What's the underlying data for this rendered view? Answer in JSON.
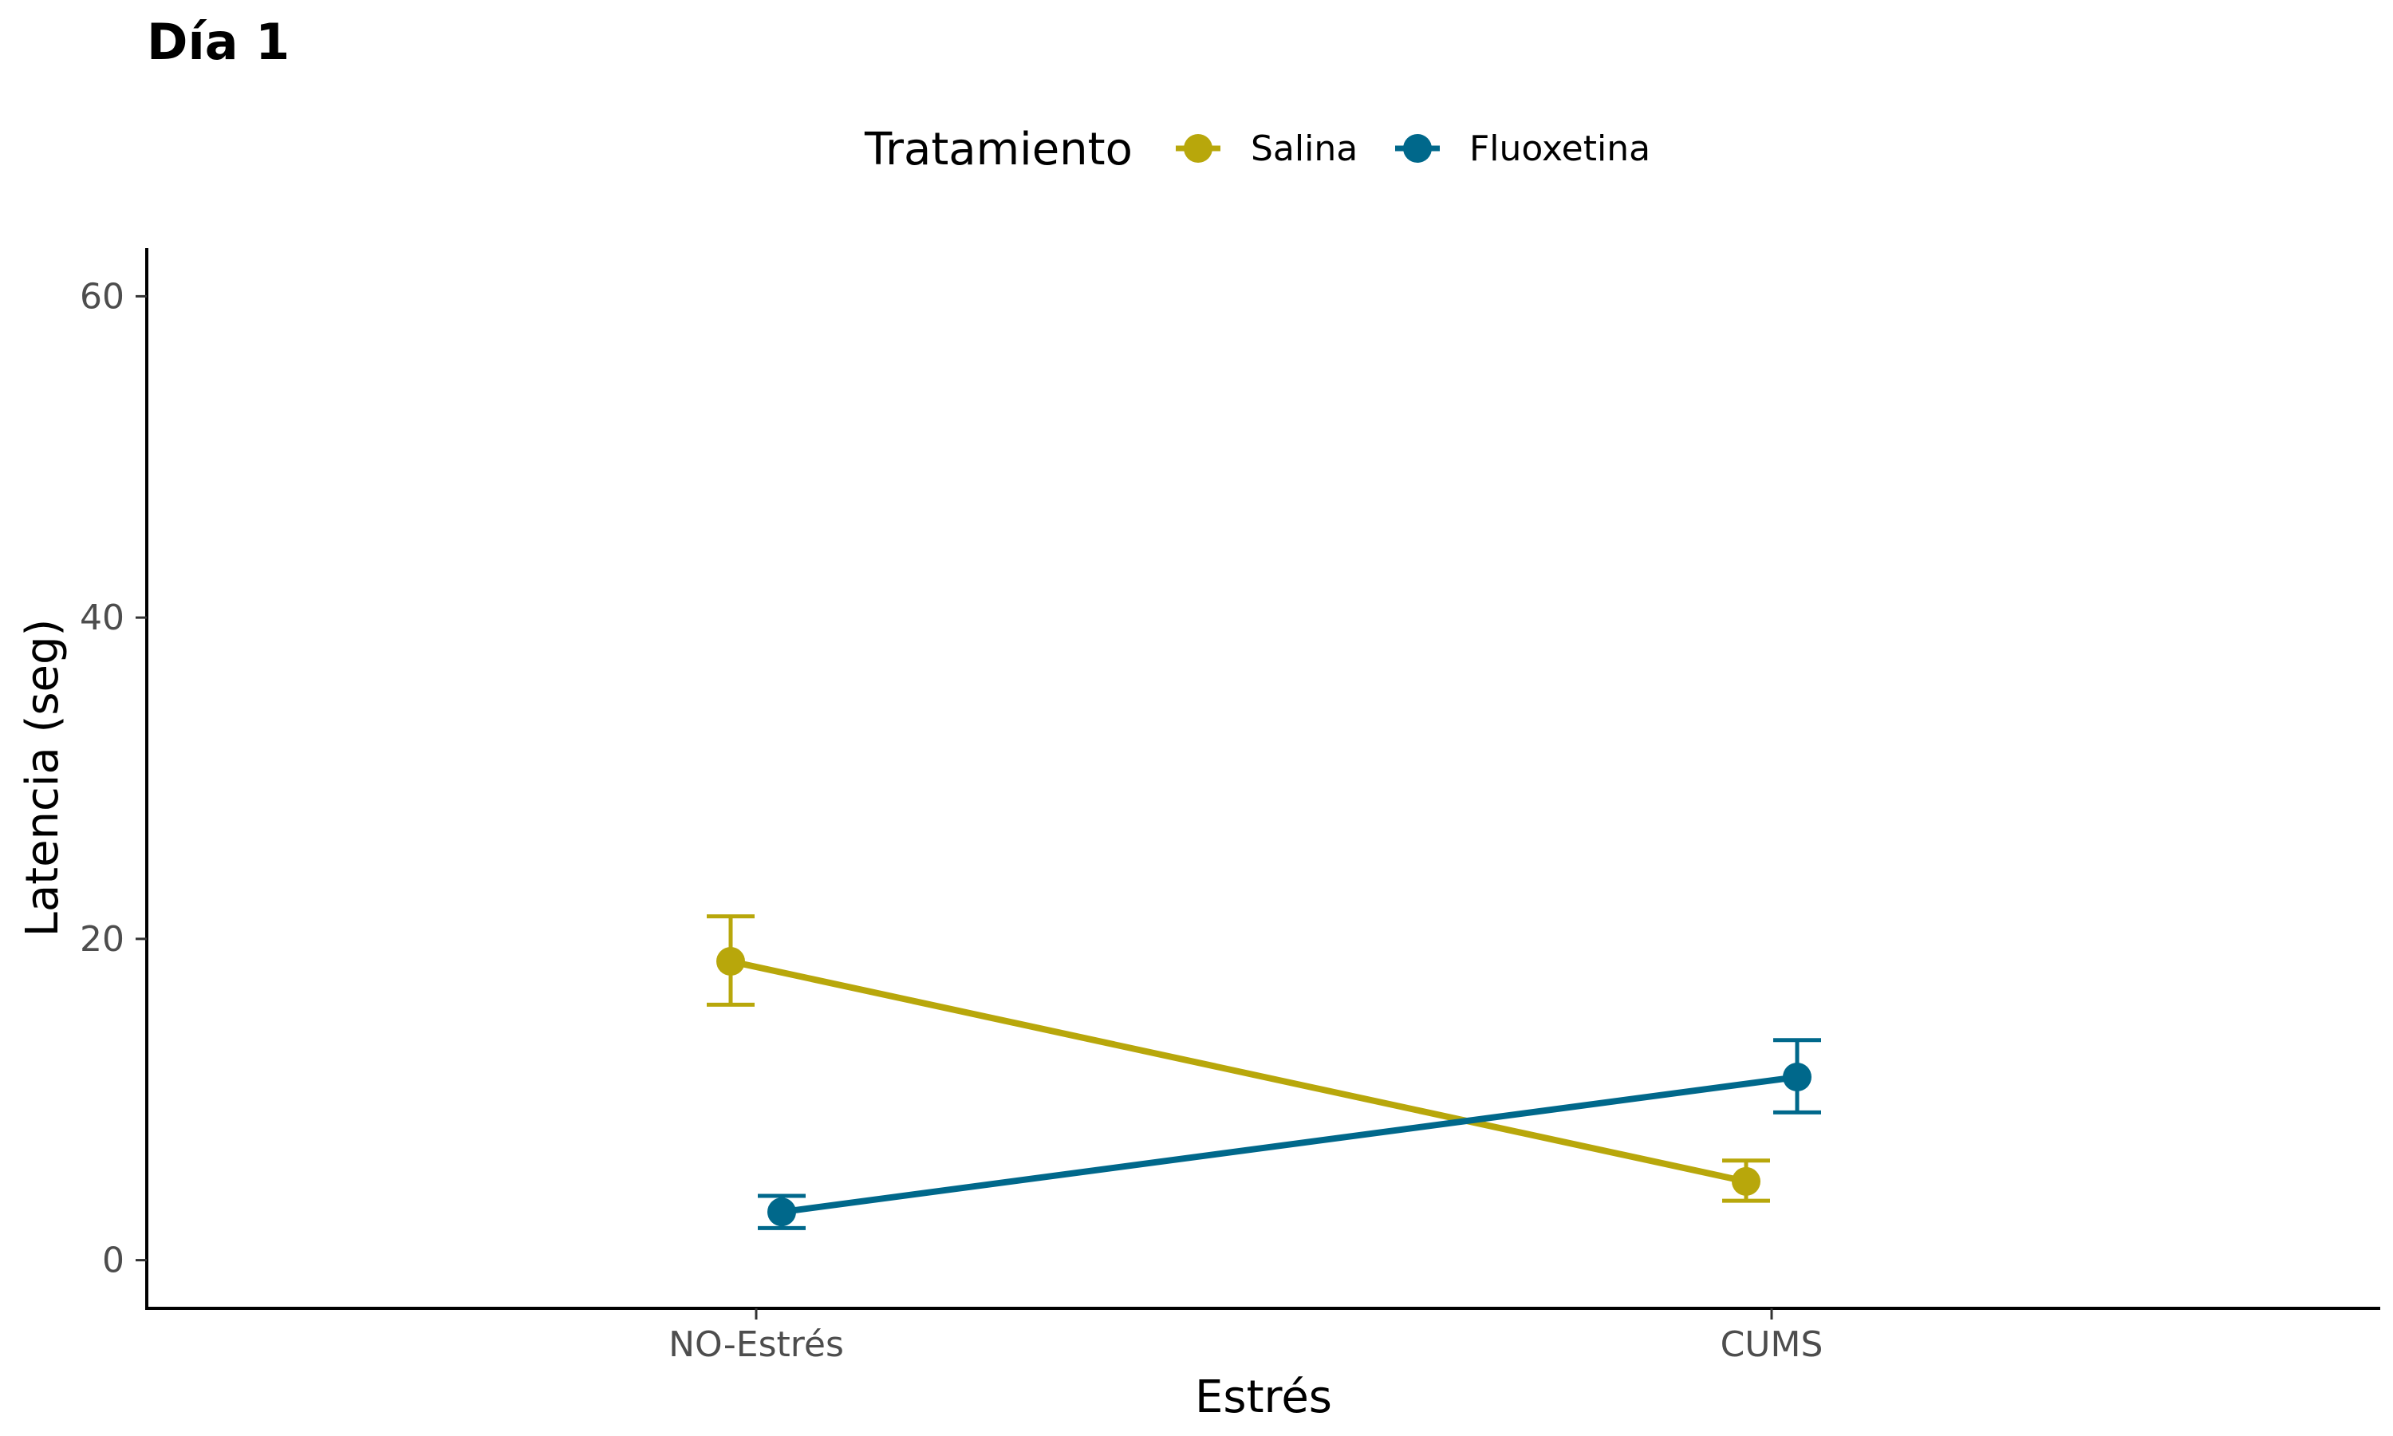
{
  "chart_data": {
    "type": "line",
    "title": "Día 1",
    "xlabel": "Estrés",
    "ylabel": "Latencia (seg)",
    "categories": [
      "NO-Estrés",
      "CUMS"
    ],
    "ylim": [
      -3,
      63
    ],
    "yticks": [
      0,
      20,
      40,
      60
    ],
    "grid": false,
    "legend": {
      "title": "Tratamiento",
      "placement": "top"
    },
    "series": [
      {
        "name": "Salina",
        "color": "#b8a70b",
        "values": [
          18.6,
          4.9
        ],
        "error_low": [
          15.9,
          3.7
        ],
        "error_high": [
          21.4,
          6.2
        ]
      },
      {
        "name": "Fluoxetina",
        "color": "#00688b",
        "values": [
          3.0,
          11.4
        ],
        "error_low": [
          2.0,
          9.2
        ],
        "error_high": [
          4.0,
          13.7
        ]
      }
    ]
  }
}
